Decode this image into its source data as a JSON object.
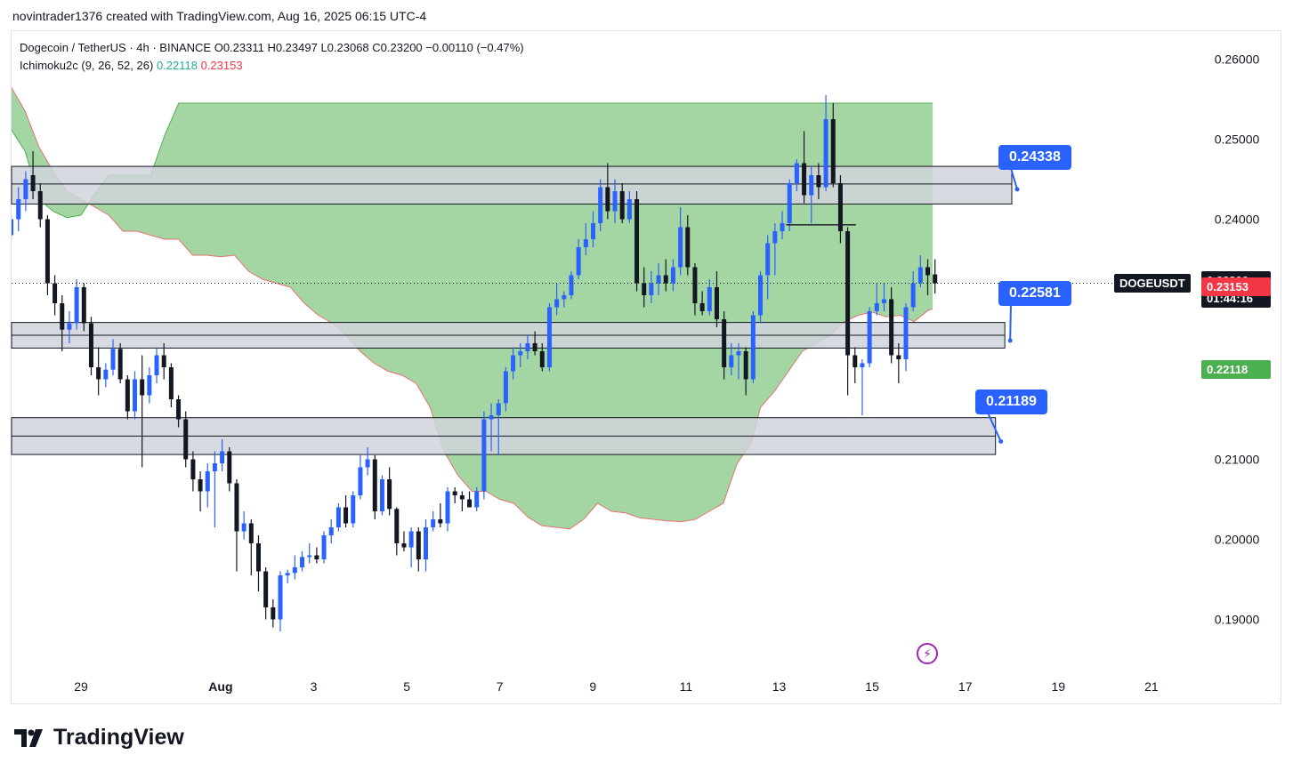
{
  "header": {
    "author_line": "novintrader1376 created with TradingView.com, Aug 16, 2025 06:15 UTC-4"
  },
  "legend": {
    "symbol": "Dogecoin / TetherUS · 4h · BINANCE",
    "ohlc": "O0.23311 H0.23497 L0.23068 C0.23200 −0.00110 (−0.47%)",
    "indicator": "Ichimoku2c (9, 26, 52, 26)",
    "indicator_v1": "0.22118",
    "indicator_v2": "0.23153"
  },
  "brand": "TradingView",
  "colors": {
    "up": "#2962ff",
    "down": "#131722",
    "cloud": "#9fd49f",
    "cloud_edge_green": "#4caf50",
    "cloud_edge_red": "#e57373",
    "zone_fill": "#d1d4dc",
    "label": "#2962ff",
    "tag_red": "#f23645",
    "tag_green": "#4caf50"
  },
  "icons": {
    "lightning": "lightning-icon",
    "brand_logo": "tradingview-logo-icon"
  },
  "chart_data": {
    "type": "candlestick",
    "symbol": "DOGEUSDT",
    "timeframe": "4h",
    "ylim": [
      0.1835,
      0.2635
    ],
    "y_ticks": [
      "0.26000",
      "0.25000",
      "0.24000",
      "0.21000",
      "0.20000",
      "0.19000"
    ],
    "x_ticks": [
      {
        "label": "29",
        "t": 0
      },
      {
        "label": "Aug",
        "t": 3
      },
      {
        "label": "3",
        "t": 5
      },
      {
        "label": "5",
        "t": 7
      },
      {
        "label": "7",
        "t": 9
      },
      {
        "label": "9",
        "t": 11
      },
      {
        "label": "11",
        "t": 13
      },
      {
        "label": "13",
        "t": 15
      },
      {
        "label": "15",
        "t": 17
      },
      {
        "label": "17",
        "t": 19
      },
      {
        "label": "19",
        "t": 21
      },
      {
        "label": "21",
        "t": 23
      }
    ],
    "last_price": {
      "symbol": "DOGEUSDT",
      "price": "0.23200",
      "countdown": "01:44:16",
      "value": 0.232
    },
    "indicator_tags": [
      {
        "value": "0.23153",
        "color": "red",
        "y": 0.23153
      },
      {
        "value": "0.22118",
        "color": "green",
        "y": 0.22118
      }
    ],
    "zones": [
      {
        "label": "0.24338",
        "top": 0.2466,
        "bottom": 0.2419,
        "mid": 0.2444,
        "t_end": 20.0
      },
      {
        "label": "0.22581",
        "top": 0.2271,
        "bottom": 0.2239,
        "mid": 0.2255,
        "t_end": 19.85
      },
      {
        "label": "0.21189",
        "top": 0.2152,
        "bottom": 0.2106,
        "mid": 0.2129,
        "t_end": 19.65
      }
    ],
    "hline": {
      "t1": 15.15,
      "t2": 16.65,
      "y": 0.2393
    },
    "cloud": {
      "t": [
        -1.5,
        -1.2,
        -0.9,
        -0.6,
        -0.3,
        0,
        0.3,
        0.6,
        0.9,
        1.2,
        1.5,
        1.8,
        2.1,
        2.4,
        2.7,
        3,
        3.3,
        3.6,
        3.9,
        4.2,
        4.5,
        4.8,
        5.1,
        5.4,
        5.7,
        6,
        6.3,
        6.6,
        6.9,
        7.2,
        7.5,
        7.8,
        8.1,
        8.4,
        8.7,
        9,
        9.3,
        9.6,
        9.9,
        10.2,
        10.5,
        10.8,
        11.1,
        11.4,
        11.7,
        12,
        12.3,
        12.6,
        12.9,
        13.2,
        13.5,
        13.8,
        14.1,
        14.4,
        14.6,
        14.9,
        15.2,
        15.5,
        15.8,
        16.1,
        16.4,
        16.7,
        17,
        17.3,
        17.6,
        17.9,
        18.2,
        18.3
      ],
      "a": [
        0.2565,
        0.2535,
        0.249,
        0.246,
        0.2435,
        0.2425,
        0.2415,
        0.2405,
        0.2385,
        0.2385,
        0.238,
        0.2375,
        0.2375,
        0.2355,
        0.2355,
        0.2353,
        0.2355,
        0.2335,
        0.2325,
        0.232,
        0.2315,
        0.2295,
        0.228,
        0.227,
        0.2255,
        0.2235,
        0.222,
        0.221,
        0.2205,
        0.2195,
        0.2165,
        0.211,
        0.208,
        0.206,
        0.206,
        0.205,
        0.2045,
        0.2028,
        0.2017,
        0.2015,
        0.2013,
        0.2025,
        0.2045,
        0.2035,
        0.2033,
        0.2027,
        0.2025,
        0.2023,
        0.2022,
        0.2025,
        0.2035,
        0.2045,
        0.2095,
        0.212,
        0.2165,
        0.2185,
        0.221,
        0.2235,
        0.2245,
        0.2255,
        0.2272,
        0.228,
        0.2284,
        0.2278,
        0.228,
        0.2272,
        0.2286,
        0.2288
      ],
      "b": [
        0.2512,
        0.2485,
        0.2425,
        0.241,
        0.2402,
        0.2405,
        0.2432,
        0.2455,
        0.2455,
        0.2455,
        0.2455,
        0.2505,
        0.2545,
        0.2545,
        0.2545,
        0.2545,
        0.2545,
        0.2545,
        0.2545,
        0.2545,
        0.2545,
        0.2545,
        0.2545,
        0.2545,
        0.2545,
        0.2545,
        0.2545,
        0.2545,
        0.2545,
        0.2545,
        0.2545,
        0.2545,
        0.2545,
        0.2545,
        0.2545,
        0.2545,
        0.2545,
        0.2545,
        0.2545,
        0.2545,
        0.2545,
        0.2545,
        0.2545,
        0.2545,
        0.2545,
        0.2545,
        0.2545,
        0.2545,
        0.2545,
        0.2545,
        0.2545,
        0.2545,
        0.2545,
        0.2545,
        0.2545,
        0.2545,
        0.2545,
        0.2545,
        0.2545,
        0.2545,
        0.2545,
        0.2545,
        0.2545,
        0.2545,
        0.2545,
        0.2545,
        0.2545,
        0.2545
      ]
    },
    "candles": [
      {
        "o": 0.238,
        "h": 0.2405,
        "l": 0.2375,
        "c": 0.24
      },
      {
        "o": 0.24,
        "h": 0.244,
        "l": 0.2385,
        "c": 0.2425
      },
      {
        "o": 0.2425,
        "h": 0.246,
        "l": 0.241,
        "c": 0.245
      },
      {
        "o": 0.2455,
        "h": 0.2485,
        "l": 0.2425,
        "c": 0.2435
      },
      {
        "o": 0.2435,
        "h": 0.2445,
        "l": 0.239,
        "c": 0.24
      },
      {
        "o": 0.24,
        "h": 0.2405,
        "l": 0.2305,
        "c": 0.232
      },
      {
        "o": 0.232,
        "h": 0.233,
        "l": 0.228,
        "c": 0.2295
      },
      {
        "o": 0.2295,
        "h": 0.2305,
        "l": 0.2235,
        "c": 0.2262
      },
      {
        "o": 0.2262,
        "h": 0.2285,
        "l": 0.2245,
        "c": 0.227
      },
      {
        "o": 0.227,
        "h": 0.2325,
        "l": 0.2262,
        "c": 0.2315
      },
      {
        "o": 0.2315,
        "h": 0.232,
        "l": 0.226,
        "c": 0.227
      },
      {
        "o": 0.227,
        "h": 0.2278,
        "l": 0.2205,
        "c": 0.2215
      },
      {
        "o": 0.2215,
        "h": 0.224,
        "l": 0.218,
        "c": 0.22
      },
      {
        "o": 0.22,
        "h": 0.222,
        "l": 0.219,
        "c": 0.2212
      },
      {
        "o": 0.2212,
        "h": 0.225,
        "l": 0.2205,
        "c": 0.2238
      },
      {
        "o": 0.2238,
        "h": 0.2245,
        "l": 0.2195,
        "c": 0.22
      },
      {
        "o": 0.22,
        "h": 0.2205,
        "l": 0.215,
        "c": 0.216
      },
      {
        "o": 0.216,
        "h": 0.221,
        "l": 0.215,
        "c": 0.22
      },
      {
        "o": 0.22,
        "h": 0.223,
        "l": 0.209,
        "c": 0.218
      },
      {
        "o": 0.218,
        "h": 0.2215,
        "l": 0.217,
        "c": 0.2205
      },
      {
        "o": 0.2205,
        "h": 0.224,
        "l": 0.2195,
        "c": 0.223
      },
      {
        "o": 0.223,
        "h": 0.2245,
        "l": 0.22,
        "c": 0.2215
      },
      {
        "o": 0.2215,
        "h": 0.222,
        "l": 0.2165,
        "c": 0.2175
      },
      {
        "o": 0.2175,
        "h": 0.218,
        "l": 0.214,
        "c": 0.215
      },
      {
        "o": 0.215,
        "h": 0.216,
        "l": 0.209,
        "c": 0.21
      },
      {
        "o": 0.21,
        "h": 0.211,
        "l": 0.206,
        "c": 0.2075
      },
      {
        "o": 0.2075,
        "h": 0.2085,
        "l": 0.2035,
        "c": 0.206
      },
      {
        "o": 0.206,
        "h": 0.2095,
        "l": 0.204,
        "c": 0.2085
      },
      {
        "o": 0.2085,
        "h": 0.211,
        "l": 0.2015,
        "c": 0.2095
      },
      {
        "o": 0.2095,
        "h": 0.2125,
        "l": 0.2085,
        "c": 0.211
      },
      {
        "o": 0.211,
        "h": 0.2115,
        "l": 0.206,
        "c": 0.207
      },
      {
        "o": 0.207,
        "h": 0.2075,
        "l": 0.196,
        "c": 0.201
      },
      {
        "o": 0.201,
        "h": 0.2035,
        "l": 0.2,
        "c": 0.202
      },
      {
        "o": 0.202,
        "h": 0.2025,
        "l": 0.1955,
        "c": 0.1995
      },
      {
        "o": 0.1995,
        "h": 0.2005,
        "l": 0.1935,
        "c": 0.196
      },
      {
        "o": 0.196,
        "h": 0.1965,
        "l": 0.19,
        "c": 0.1915
      },
      {
        "o": 0.1915,
        "h": 0.1925,
        "l": 0.189,
        "c": 0.19
      },
      {
        "o": 0.19,
        "h": 0.196,
        "l": 0.1885,
        "c": 0.1955
      },
      {
        "o": 0.1955,
        "h": 0.1962,
        "l": 0.1945,
        "c": 0.1958
      },
      {
        "o": 0.1958,
        "h": 0.198,
        "l": 0.195,
        "c": 0.1965
      },
      {
        "o": 0.1965,
        "h": 0.1985,
        "l": 0.196,
        "c": 0.1978
      },
      {
        "o": 0.1978,
        "h": 0.1995,
        "l": 0.197,
        "c": 0.198
      },
      {
        "o": 0.198,
        "h": 0.199,
        "l": 0.197,
        "c": 0.1975
      },
      {
        "o": 0.1975,
        "h": 0.201,
        "l": 0.197,
        "c": 0.2005
      },
      {
        "o": 0.2005,
        "h": 0.2025,
        "l": 0.1995,
        "c": 0.2015
      },
      {
        "o": 0.2015,
        "h": 0.2045,
        "l": 0.201,
        "c": 0.204
      },
      {
        "o": 0.204,
        "h": 0.2055,
        "l": 0.2015,
        "c": 0.202
      },
      {
        "o": 0.202,
        "h": 0.206,
        "l": 0.2015,
        "c": 0.2055
      },
      {
        "o": 0.2055,
        "h": 0.2105,
        "l": 0.205,
        "c": 0.209
      },
      {
        "o": 0.209,
        "h": 0.2115,
        "l": 0.208,
        "c": 0.21
      },
      {
        "o": 0.21,
        "h": 0.2105,
        "l": 0.2025,
        "c": 0.2035
      },
      {
        "o": 0.2035,
        "h": 0.208,
        "l": 0.203,
        "c": 0.2075
      },
      {
        "o": 0.2075,
        "h": 0.209,
        "l": 0.203,
        "c": 0.2038
      },
      {
        "o": 0.2038,
        "h": 0.204,
        "l": 0.198,
        "c": 0.1995
      },
      {
        "o": 0.1995,
        "h": 0.201,
        "l": 0.1985,
        "c": 0.199
      },
      {
        "o": 0.199,
        "h": 0.2015,
        "l": 0.1965,
        "c": 0.201
      },
      {
        "o": 0.201,
        "h": 0.2015,
        "l": 0.196,
        "c": 0.1975
      },
      {
        "o": 0.1975,
        "h": 0.2025,
        "l": 0.196,
        "c": 0.2015
      },
      {
        "o": 0.2015,
        "h": 0.2035,
        "l": 0.201,
        "c": 0.2025
      },
      {
        "o": 0.2025,
        "h": 0.2045,
        "l": 0.2015,
        "c": 0.202
      },
      {
        "o": 0.202,
        "h": 0.2065,
        "l": 0.201,
        "c": 0.206
      },
      {
        "o": 0.206,
        "h": 0.2065,
        "l": 0.2045,
        "c": 0.2055
      },
      {
        "o": 0.2055,
        "h": 0.206,
        "l": 0.2035,
        "c": 0.205
      },
      {
        "o": 0.205,
        "h": 0.206,
        "l": 0.204,
        "c": 0.204
      },
      {
        "o": 0.204,
        "h": 0.2065,
        "l": 0.2035,
        "c": 0.206
      },
      {
        "o": 0.206,
        "h": 0.216,
        "l": 0.205,
        "c": 0.215
      },
      {
        "o": 0.215,
        "h": 0.217,
        "l": 0.211,
        "c": 0.2155
      },
      {
        "o": 0.2155,
        "h": 0.2175,
        "l": 0.2105,
        "c": 0.217
      },
      {
        "o": 0.217,
        "h": 0.2215,
        "l": 0.216,
        "c": 0.221
      },
      {
        "o": 0.221,
        "h": 0.224,
        "l": 0.22,
        "c": 0.223
      },
      {
        "o": 0.223,
        "h": 0.2245,
        "l": 0.2215,
        "c": 0.2235
      },
      {
        "o": 0.2235,
        "h": 0.2255,
        "l": 0.2225,
        "c": 0.2245
      },
      {
        "o": 0.2245,
        "h": 0.226,
        "l": 0.223,
        "c": 0.2235
      },
      {
        "o": 0.2235,
        "h": 0.2245,
        "l": 0.221,
        "c": 0.2215
      },
      {
        "o": 0.2215,
        "h": 0.2295,
        "l": 0.221,
        "c": 0.229
      },
      {
        "o": 0.229,
        "h": 0.232,
        "l": 0.228,
        "c": 0.23
      },
      {
        "o": 0.23,
        "h": 0.231,
        "l": 0.229,
        "c": 0.2305
      },
      {
        "o": 0.2305,
        "h": 0.2335,
        "l": 0.23,
        "c": 0.233
      },
      {
        "o": 0.233,
        "h": 0.2375,
        "l": 0.2325,
        "c": 0.2365
      },
      {
        "o": 0.2365,
        "h": 0.2395,
        "l": 0.2355,
        "c": 0.2375
      },
      {
        "o": 0.2375,
        "h": 0.241,
        "l": 0.2365,
        "c": 0.2395
      },
      {
        "o": 0.2395,
        "h": 0.245,
        "l": 0.2385,
        "c": 0.244
      },
      {
        "o": 0.244,
        "h": 0.247,
        "l": 0.24,
        "c": 0.241
      },
      {
        "o": 0.241,
        "h": 0.245,
        "l": 0.2395,
        "c": 0.2435
      },
      {
        "o": 0.2435,
        "h": 0.2445,
        "l": 0.2395,
        "c": 0.24
      },
      {
        "o": 0.24,
        "h": 0.2435,
        "l": 0.2395,
        "c": 0.2425
      },
      {
        "o": 0.2425,
        "h": 0.2435,
        "l": 0.231,
        "c": 0.232
      },
      {
        "o": 0.232,
        "h": 0.234,
        "l": 0.229,
        "c": 0.2305
      },
      {
        "o": 0.2305,
        "h": 0.2335,
        "l": 0.2295,
        "c": 0.232
      },
      {
        "o": 0.232,
        "h": 0.2345,
        "l": 0.2305,
        "c": 0.233
      },
      {
        "o": 0.233,
        "h": 0.235,
        "l": 0.231,
        "c": 0.232
      },
      {
        "o": 0.232,
        "h": 0.235,
        "l": 0.231,
        "c": 0.234
      },
      {
        "o": 0.234,
        "h": 0.2415,
        "l": 0.233,
        "c": 0.239
      },
      {
        "o": 0.239,
        "h": 0.2405,
        "l": 0.233,
        "c": 0.234
      },
      {
        "o": 0.234,
        "h": 0.2345,
        "l": 0.228,
        "c": 0.2295
      },
      {
        "o": 0.2295,
        "h": 0.231,
        "l": 0.228,
        "c": 0.2285
      },
      {
        "o": 0.2285,
        "h": 0.2325,
        "l": 0.228,
        "c": 0.2315
      },
      {
        "o": 0.2315,
        "h": 0.2335,
        "l": 0.2265,
        "c": 0.2275
      },
      {
        "o": 0.2275,
        "h": 0.2285,
        "l": 0.22,
        "c": 0.2215
      },
      {
        "o": 0.2215,
        "h": 0.2245,
        "l": 0.2205,
        "c": 0.223
      },
      {
        "o": 0.223,
        "h": 0.2245,
        "l": 0.22,
        "c": 0.2235
      },
      {
        "o": 0.2235,
        "h": 0.224,
        "l": 0.218,
        "c": 0.22
      },
      {
        "o": 0.22,
        "h": 0.2285,
        "l": 0.2195,
        "c": 0.228
      },
      {
        "o": 0.228,
        "h": 0.2335,
        "l": 0.227,
        "c": 0.233
      },
      {
        "o": 0.233,
        "h": 0.238,
        "l": 0.23,
        "c": 0.237
      },
      {
        "o": 0.237,
        "h": 0.2395,
        "l": 0.233,
        "c": 0.2385
      },
      {
        "o": 0.2385,
        "h": 0.241,
        "l": 0.2375,
        "c": 0.2395
      },
      {
        "o": 0.2395,
        "h": 0.245,
        "l": 0.2385,
        "c": 0.2445
      },
      {
        "o": 0.2445,
        "h": 0.2475,
        "l": 0.2435,
        "c": 0.247
      },
      {
        "o": 0.247,
        "h": 0.251,
        "l": 0.242,
        "c": 0.243
      },
      {
        "o": 0.243,
        "h": 0.2465,
        "l": 0.2395,
        "c": 0.2455
      },
      {
        "o": 0.2455,
        "h": 0.247,
        "l": 0.2425,
        "c": 0.244
      },
      {
        "o": 0.244,
        "h": 0.2555,
        "l": 0.2435,
        "c": 0.2525
      },
      {
        "o": 0.2525,
        "h": 0.2545,
        "l": 0.244,
        "c": 0.2445
      },
      {
        "o": 0.2445,
        "h": 0.2455,
        "l": 0.237,
        "c": 0.2385
      },
      {
        "o": 0.2385,
        "h": 0.239,
        "l": 0.218,
        "c": 0.223
      },
      {
        "o": 0.223,
        "h": 0.224,
        "l": 0.2195,
        "c": 0.2215
      },
      {
        "o": 0.2215,
        "h": 0.2225,
        "l": 0.2155,
        "c": 0.222
      },
      {
        "o": 0.222,
        "h": 0.229,
        "l": 0.2215,
        "c": 0.2285
      },
      {
        "o": 0.2285,
        "h": 0.232,
        "l": 0.228,
        "c": 0.2295
      },
      {
        "o": 0.2295,
        "h": 0.232,
        "l": 0.2285,
        "c": 0.23
      },
      {
        "o": 0.23,
        "h": 0.2315,
        "l": 0.222,
        "c": 0.223
      },
      {
        "o": 0.223,
        "h": 0.2245,
        "l": 0.2195,
        "c": 0.2225
      },
      {
        "o": 0.2225,
        "h": 0.2295,
        "l": 0.221,
        "c": 0.229
      },
      {
        "o": 0.229,
        "h": 0.2335,
        "l": 0.2285,
        "c": 0.232
      },
      {
        "o": 0.232,
        "h": 0.2355,
        "l": 0.2315,
        "c": 0.234
      },
      {
        "o": 0.234,
        "h": 0.235,
        "l": 0.2305,
        "c": 0.233
      },
      {
        "o": 0.2331,
        "h": 0.235,
        "l": 0.2307,
        "c": 0.232
      }
    ]
  }
}
